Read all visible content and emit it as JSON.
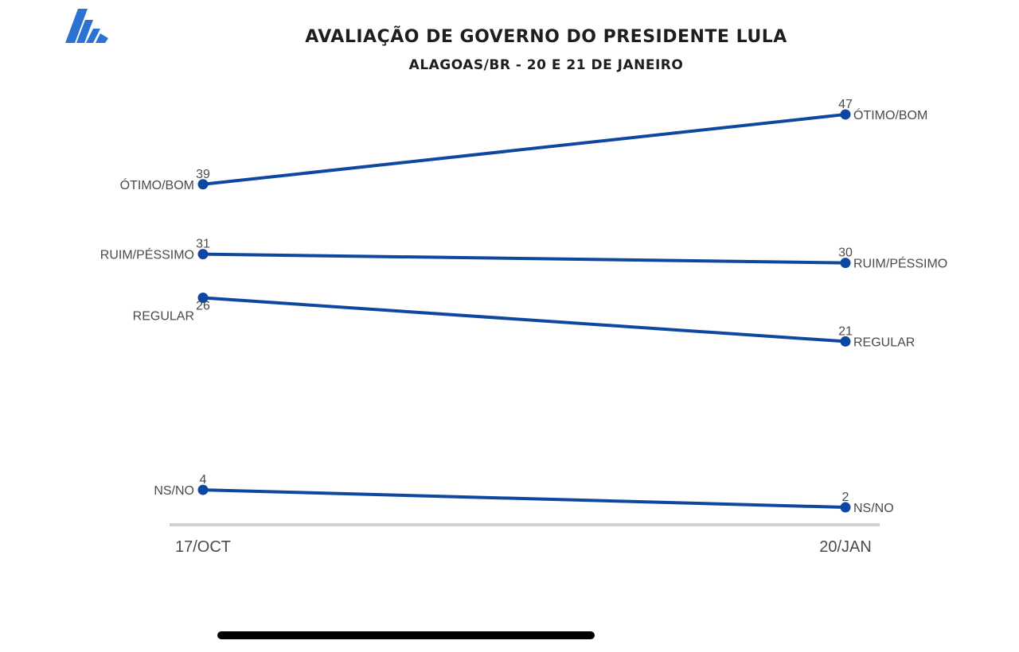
{
  "brand": {
    "logo_icon": "stacked-bars-logo-icon",
    "logo_color": "#2b72d3"
  },
  "colors": {
    "line": "#0d47a1",
    "label_text": "#4a4a4a",
    "title_text": "#1e1e1e",
    "axis": "#cfcfd4"
  },
  "chart_data": {
    "type": "line",
    "title": "AVALIAÇÃO DE GOVERNO DO PRESIDENTE LULA",
    "subtitle": "ALAGOAS/BR - 20 E 21 DE JANEIRO",
    "x": [
      "17/OCT",
      "20/JAN"
    ],
    "ylim": [
      0,
      50
    ],
    "grid": false,
    "legend": "direct labels at both ends of each line",
    "series": [
      {
        "name": "ÓTIMO/BOM",
        "values": [
          39,
          47
        ]
      },
      {
        "name": "RUIM/PÉSSIMO",
        "values": [
          31,
          30
        ]
      },
      {
        "name": "REGULAR",
        "values": [
          26,
          21
        ]
      },
      {
        "name": "NS/NO",
        "values": [
          4,
          2
        ]
      }
    ]
  }
}
